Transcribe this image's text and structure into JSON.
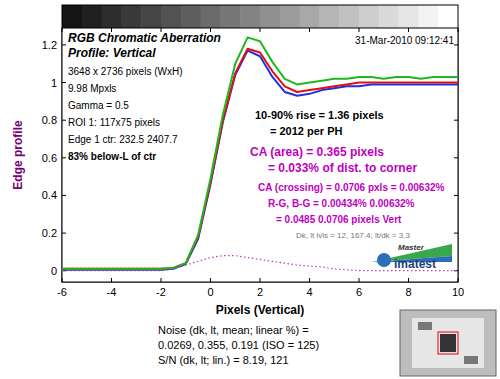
{
  "chart_data": {
    "type": "line",
    "title": "RGB Chromatic Aberration",
    "subtitle": "Profile: Vertical",
    "x_label": "Pixels (Vertical)",
    "y_label": "Edge profile",
    "date": "31-Mar-2010 09:12:41",
    "info": [
      "3648 x 2736 pixels (WxH)",
      "9.98 Mpxls",
      "Gamma = 0.5",
      "ROI 1: 117x75 pixels",
      "Edge 1 ctr: 232.5  2407.7",
      "83% below-L of ctr"
    ],
    "rise": [
      "10-90% rise = 1.36 pixels",
      "= 2012 per PH"
    ],
    "ca_area": [
      "CA (area) = 0.365 pixels",
      "= 0.033% of dist. to corner"
    ],
    "ca_crossing": [
      "CA (crossing) = 0.0706 pxls = 0.00632%",
      "R-G, B-G = 0.00434%  0.00632%",
      "= 0.0485  0.0706 pixels Vert"
    ],
    "levels": "Dk, lt lvls = 12, 167.4;  lt/dk = 3.3",
    "version": "Master",
    "logo": "imatest",
    "noise": [
      "Noise (dk, lt, mean; linear %) =",
      "0.0269,  0.355,  0.191  (ISO = 125)",
      "S/N (dk, lt; lin.) = 8.19, 121"
    ],
    "x": [
      -6,
      -5.5,
      -5,
      -4.5,
      -4,
      -3.5,
      -3,
      -2.5,
      -2,
      -1.5,
      -1,
      -0.5,
      0,
      0.5,
      1,
      1.5,
      2,
      2.5,
      3,
      3.5,
      4,
      4.5,
      5,
      5.5,
      6,
      6.5,
      7,
      7.5,
      8,
      8.5,
      9,
      9.5,
      10
    ],
    "series": [
      {
        "color": "#2030e0",
        "line_style": "solid",
        "values": [
          0.005,
          0.005,
          0.005,
          0.005,
          0.005,
          0.005,
          0.005,
          0.005,
          0.005,
          0.01,
          0.035,
          0.17,
          0.46,
          0.79,
          1.04,
          1.17,
          1.14,
          1.03,
          0.95,
          0.93,
          0.94,
          0.96,
          0.97,
          0.98,
          0.98,
          0.99,
          0.99,
          0.99,
          0.99,
          0.99,
          0.99,
          0.99,
          0.99
        ]
      },
      {
        "color": "#e01010",
        "line_style": "solid",
        "values": [
          0.01,
          0.01,
          0.01,
          0.01,
          0.01,
          0.01,
          0.01,
          0.01,
          0.01,
          0.015,
          0.04,
          0.18,
          0.47,
          0.8,
          1.05,
          1.18,
          1.16,
          1.06,
          0.98,
          0.95,
          0.96,
          0.97,
          0.98,
          0.99,
          1.0,
          1.0,
          1.0,
          1.0,
          1.0,
          1.0,
          1.0,
          1.0,
          1.0
        ]
      },
      {
        "color": "#20b820",
        "line_style": "solid",
        "values": [
          0.01,
          0.01,
          0.01,
          0.01,
          0.01,
          0.01,
          0.01,
          0.01,
          0.01,
          0.015,
          0.04,
          0.19,
          0.49,
          0.83,
          1.1,
          1.24,
          1.22,
          1.11,
          1.02,
          0.99,
          1.0,
          1.01,
          1.02,
          1.02,
          1.03,
          1.03,
          1.02,
          1.03,
          1.03,
          1.02,
          1.03,
          1.03,
          1.03
        ]
      },
      {
        "color": "#b040b0",
        "line_style": "dotted",
        "values": [
          0,
          0,
          0,
          0,
          0,
          0,
          0,
          0,
          0,
          0.01,
          0.03,
          0.05,
          0.07,
          0.08,
          0.08,
          0.07,
          0.06,
          0.05,
          0.04,
          0.03,
          0.025,
          0.02,
          0.01,
          0.005,
          0,
          0,
          0,
          0,
          0,
          0,
          0,
          0,
          0
        ]
      }
    ],
    "xlim": [
      -6,
      10
    ],
    "ylim": [
      -0.06,
      1.29
    ],
    "xticks": [
      -6,
      -4,
      -2,
      0,
      2,
      4,
      6,
      8,
      10
    ],
    "yticks": [
      0,
      0.2,
      0.4,
      0.6,
      0.8,
      1,
      1.2
    ],
    "grid": false
  }
}
